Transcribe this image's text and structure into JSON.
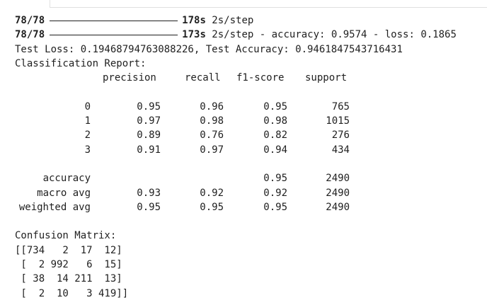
{
  "progress": [
    {
      "step": "78/78",
      "fraction": 1.0,
      "time": "178s",
      "rate": " 2s/step",
      "metrics": ""
    },
    {
      "step": "78/78",
      "fraction": 1.0,
      "time": "173s",
      "rate": " 2s/step",
      "metrics": " - accuracy: 0.9574 - loss: 0.1865"
    }
  ],
  "test_line": "Test Loss: 0.19468794763088226, Test Accuracy: 0.9461847543716431",
  "report_title": "Classification Report:",
  "report_headers": [
    "precision",
    "recall",
    "f1-score",
    "support"
  ],
  "report_rows": [
    {
      "label": "0",
      "precision": "0.95",
      "recall": "0.96",
      "f1": "0.95",
      "support": "765"
    },
    {
      "label": "1",
      "precision": "0.97",
      "recall": "0.98",
      "f1": "0.98",
      "support": "1015"
    },
    {
      "label": "2",
      "precision": "0.89",
      "recall": "0.76",
      "f1": "0.82",
      "support": "276"
    },
    {
      "label": "3",
      "precision": "0.91",
      "recall": "0.97",
      "f1": "0.94",
      "support": "434"
    }
  ],
  "report_summary": [
    {
      "label": "accuracy",
      "precision": "",
      "recall": "",
      "f1": "0.95",
      "support": "2490"
    },
    {
      "label": "macro avg",
      "precision": "0.93",
      "recall": "0.92",
      "f1": "0.92",
      "support": "2490"
    },
    {
      "label": "weighted avg",
      "precision": "0.95",
      "recall": "0.95",
      "f1": "0.95",
      "support": "2490"
    }
  ],
  "matrix_title": "Confusion Matrix:",
  "matrix_lines": [
    "[[734   2  17  12]",
    " [  2 992   6  15]",
    " [ 38  14 211  13]",
    " [  2  10   3 419]]"
  ]
}
